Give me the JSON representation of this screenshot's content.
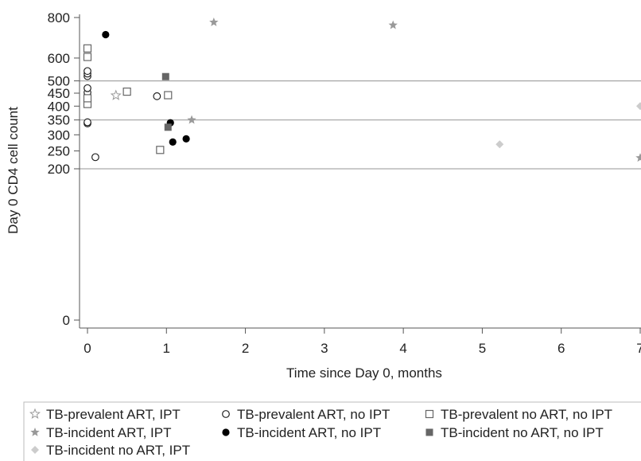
{
  "chart_data": {
    "type": "scatter",
    "xlabel": "Time since Day 0, months",
    "ylabel": "Day 0 CD4 cell count",
    "xlim": [
      0,
      7
    ],
    "ylim": [
      0,
      800
    ],
    "y_scale": "sqrt",
    "x_ticks": [
      "0",
      "1",
      "2",
      "3",
      "4",
      "5",
      "6",
      "7"
    ],
    "y_ticks": [
      "0",
      "200",
      "250",
      "300",
      "350",
      "400",
      "450",
      "500",
      "600",
      "800"
    ],
    "reference_lines_y": [
      200,
      350,
      500
    ],
    "legend_position": "bottom",
    "series": [
      {
        "name": "TB-prevalent ART, IPT",
        "marker": "star-open",
        "color": "#999999",
        "points": [
          [
            0.36,
            441
          ]
        ]
      },
      {
        "name": "TB-prevalent ART, no IPT",
        "marker": "circle-open",
        "color": "#222222",
        "points": [
          [
            0.0,
            338
          ],
          [
            0.0,
            342
          ],
          [
            0.0,
            453
          ],
          [
            0.0,
            470
          ],
          [
            0.0,
            520
          ],
          [
            0.0,
            531
          ],
          [
            0.0,
            542
          ],
          [
            0.1,
            232
          ],
          [
            0.88,
            438
          ]
        ]
      },
      {
        "name": "TB-prevalent no ART, no IPT",
        "marker": "square-open",
        "color": "#666666",
        "points": [
          [
            0.0,
            408
          ],
          [
            0.0,
            430
          ],
          [
            0.0,
            605
          ],
          [
            0.0,
            645
          ],
          [
            0.5,
            456
          ],
          [
            0.92,
            253
          ],
          [
            1.02,
            442
          ]
        ]
      },
      {
        "name": "TB-incident ART, IPT",
        "marker": "star-filled",
        "color": "#999999",
        "points": [
          [
            1.6,
            775
          ],
          [
            3.87,
            760
          ],
          [
            1.32,
            350
          ],
          [
            7.0,
            230
          ]
        ]
      },
      {
        "name": "TB-incident ART, no IPT",
        "marker": "circle-filled",
        "color": "#000000",
        "points": [
          [
            0.23,
            712
          ],
          [
            1.05,
            340
          ],
          [
            1.08,
            277
          ],
          [
            1.25,
            287
          ]
        ]
      },
      {
        "name": "TB-incident no ART, no IPT",
        "marker": "square-filled",
        "color": "#666666",
        "points": [
          [
            0.99,
            518
          ],
          [
            1.02,
            325
          ]
        ]
      },
      {
        "name": "TB-incident no ART, IPT",
        "marker": "diamond-filled",
        "color": "#cccccc",
        "points": [
          [
            5.22,
            270
          ],
          [
            7.0,
            400
          ]
        ]
      }
    ]
  }
}
